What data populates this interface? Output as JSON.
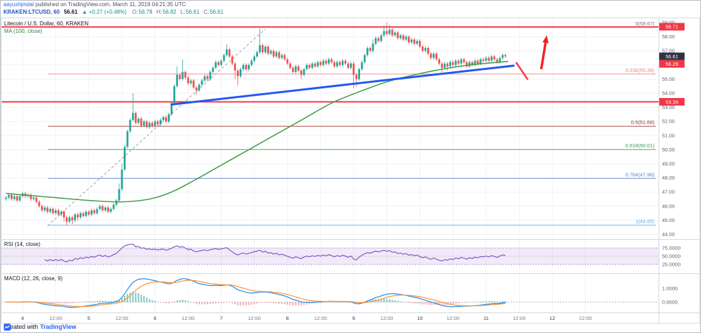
{
  "header": {
    "byline_user": "aayushjindal",
    "byline_rest": " published on TradingView.com, March 11, 2019 04:21:35 UTC",
    "symbol": "KRAKEN:LTCUSD, 60",
    "last_price": "56.61",
    "up_arrow": "▲",
    "change": "+0.27 (+0.48%)",
    "ohlc": [
      {
        "k": "O",
        "v": "56.78"
      },
      {
        "k": "H",
        "v": "56.82"
      },
      {
        "k": "L",
        "v": "56.61"
      },
      {
        "k": "C",
        "v": "56.61"
      }
    ]
  },
  "chart_labels": {
    "title": "Litecoin / U.S. Dollar, 60, KRAKEN",
    "ma": "MA (100, close)",
    "rsi": "RSI (14, close)",
    "macd": "MACD (12, 26, close, 9)"
  },
  "footer": {
    "created": "Created with",
    "brand": "TradingView"
  },
  "chart_data": {
    "type": "candlestick",
    "symbol": "KRAKEN:LTCUSD",
    "interval": "60",
    "title": "Litecoin / U.S. Dollar, 60, KRAKEN",
    "ylim": [
      44,
      59
    ],
    "price_ticks": [
      "59.00",
      "58.00",
      "57.00",
      "56.00",
      "55.00",
      "54.00",
      "53.00",
      "52.00",
      "51.00",
      "50.00",
      "49.00",
      "48.00",
      "47.00",
      "46.00",
      "45.00",
      "44.00"
    ],
    "time_ticks": [
      {
        "label": "4",
        "hour": 0
      },
      {
        "label": "12:00",
        "hour": 12
      },
      {
        "label": "5",
        "hour": 24
      },
      {
        "label": "12:00",
        "hour": 36
      },
      {
        "label": "6",
        "hour": 48
      },
      {
        "label": "12:00",
        "hour": 60
      },
      {
        "label": "7",
        "hour": 72
      },
      {
        "label": "12:00",
        "hour": 84
      },
      {
        "label": "8",
        "hour": 96
      },
      {
        "label": "12:00",
        "hour": 108
      },
      {
        "label": "9",
        "hour": 120
      },
      {
        "label": "12:00",
        "hour": 132
      },
      {
        "label": "10",
        "hour": 144
      },
      {
        "label": "12:00",
        "hour": 156
      },
      {
        "label": "11",
        "hour": 168
      },
      {
        "label": "12:00",
        "hour": 180
      },
      {
        "label": "12",
        "hour": 192
      },
      {
        "label": "12:00",
        "hour": 204
      }
    ],
    "candles": {
      "pre": 6,
      "seed_open": 46.5,
      "wick": 0.12,
      "up_color": "#26a69a",
      "down_color": "#ef5350",
      "closes": [
        46.6,
        46.8,
        46.5,
        46.7,
        46.4,
        46.7,
        46.9,
        46.7,
        46.8,
        46.5,
        46.6,
        46.3,
        46.0,
        45.7,
        45.9,
        45.6,
        45.8,
        45.5,
        45.7,
        45.4,
        45.6,
        45.2,
        44.9,
        45.2,
        45.0,
        45.4,
        45.2,
        45.5,
        45.3,
        45.6,
        45.4,
        45.7,
        45.5,
        45.8,
        46.0,
        45.7,
        45.9,
        45.6,
        45.8,
        46.1,
        46.4,
        47.2,
        48.6,
        50.2,
        51.3,
        52.1,
        52.6,
        51.9,
        52.2,
        51.7,
        52.0,
        51.6,
        51.9,
        51.7,
        52.0,
        51.8,
        52.1,
        52.3,
        52.0,
        52.5,
        53.3,
        54.5,
        55.3,
        55.0,
        55.5,
        55.1,
        54.7,
        54.9,
        54.4,
        54.2,
        54.6,
        54.9,
        55.2,
        55.0,
        55.5,
        55.8,
        56.2,
        56.0,
        56.3,
        56.7,
        57.1,
        56.6,
        56.1,
        55.6,
        55.2,
        55.7,
        56.0,
        55.7,
        56.0,
        56.3,
        56.6,
        56.9,
        57.4,
        56.9,
        57.3,
        56.8,
        57.0,
        56.6,
        56.9,
        56.5,
        56.7,
        56.4,
        56.1,
        55.8,
        55.5,
        55.9,
        55.6,
        55.3,
        55.7,
        56.0,
        55.8,
        56.1,
        55.9,
        56.2,
        56.0,
        56.3,
        56.1,
        56.4,
        56.2,
        55.9,
        56.2,
        56.0,
        56.3,
        56.1,
        55.8,
        56.1,
        55.3,
        55.0,
        55.7,
        56.2,
        56.7,
        57.2,
        57.0,
        57.5,
        57.9,
        57.7,
        58.1,
        58.4,
        58.2,
        58.5,
        58.1,
        58.3,
        57.9,
        58.1,
        57.8,
        58.0,
        57.6,
        57.8,
        57.5,
        57.7,
        57.3,
        57.0,
        57.2,
        56.8,
        56.5,
        56.8,
        56.4,
        56.1,
        55.8,
        56.1,
        55.9,
        56.2,
        56.0,
        56.3,
        56.1,
        56.4,
        56.2,
        55.9,
        56.2,
        56.0,
        56.3,
        56.1,
        56.4,
        56.3,
        56.5,
        56.3,
        56.6,
        56.4,
        56.2,
        56.5,
        56.7,
        56.61
      ],
      "high_overrides": {
        "41": 47.6,
        "42": 49.0,
        "46": 54.0,
        "62": 55.9,
        "64": 56.4,
        "80": 57.45,
        "92": 58.6,
        "133": 57.8,
        "137": 58.8,
        "138": 59.0,
        "139": 58.85
      },
      "low_overrides": {
        "21": 44.9,
        "22": 44.65,
        "23": 44.8,
        "24": 44.72,
        "26": 44.95,
        "69": 53.9,
        "83": 55.0,
        "84": 54.55,
        "107": 55.0,
        "126": 54.35,
        "127": 54.45,
        "158": 55.5,
        "160": 55.6
      }
    },
    "fib_levels": [
      {
        "label": "0(58.67)",
        "price": 58.67,
        "color": "#787b86"
      },
      {
        "label": "0.236(55.36)",
        "price": 55.36,
        "color": "#e8807d"
      },
      {
        "label": "0.5(51.66)",
        "price": 51.66,
        "color": "#9b2a2a"
      },
      {
        "label": "0.618(50.01)",
        "price": 50.01,
        "color": "#2f9e4f"
      },
      {
        "label": "0.764(47.96)",
        "price": 47.96,
        "color": "#5b7fd0"
      },
      {
        "label": "1(44.65)",
        "price": 44.65,
        "color": "#53b1e0"
      }
    ],
    "hlines": [
      {
        "price": 58.69,
        "color": "#f23645",
        "width": 2
      },
      {
        "price": 53.39,
        "color": "#f23645",
        "width": 2
      }
    ],
    "badges": [
      {
        "label": "58.71",
        "price": 58.71,
        "bg": "#f23645"
      },
      {
        "label": "56.61",
        "price": 56.61,
        "bg": "#2f3241"
      },
      {
        "label": "56.29",
        "price": 56.29,
        "bg": "#f23645"
      },
      {
        "label": "53.39",
        "price": 53.39,
        "bg": "#f23645"
      }
    ],
    "ma_line": {
      "color": "#43a047",
      "anchors": [
        [
          -6,
          46.9
        ],
        [
          0,
          46.8
        ],
        [
          12,
          46.6
        ],
        [
          24,
          46.4
        ],
        [
          36,
          46.3
        ],
        [
          46,
          46.5
        ],
        [
          54,
          47.0
        ],
        [
          62,
          47.8
        ],
        [
          72,
          48.9
        ],
        [
          82,
          50.0
        ],
        [
          92,
          51.1
        ],
        [
          102,
          52.2
        ],
        [
          112,
          53.3
        ],
        [
          122,
          54.1
        ],
        [
          132,
          54.8
        ],
        [
          142,
          55.3
        ],
        [
          152,
          55.7
        ],
        [
          162,
          56.0
        ],
        [
          170,
          56.15
        ],
        [
          176,
          56.25
        ]
      ]
    },
    "blue_trendline": {
      "from": [
        54,
        53.2
      ],
      "to": [
        178,
        55.95
      ],
      "color": "#2157f3",
      "width": 3
    },
    "dashed_guide": {
      "from": [
        9,
        44.6
      ],
      "to": [
        88,
        58.55
      ],
      "color": "#a0a3ab"
    },
    "red_slash": {
      "from": [
        179,
        56.15
      ],
      "to": [
        183,
        55.0
      ],
      "color": "#f23645"
    },
    "red_arrow": {
      "tail": [
        188,
        55.7
      ],
      "tip": [
        190,
        58.1
      ],
      "color": "#f02222"
    },
    "rsi": {
      "period": 14,
      "band": [
        25,
        75
      ],
      "color": "#7e57c2",
      "band_fill": "#b388d9",
      "ticks": [
        {
          "label": "75.0000",
          "value": 75
        },
        {
          "label": "50.0000",
          "value": 50
        },
        {
          "label": "25.0000",
          "value": 25
        }
      ]
    },
    "macd": {
      "fast": 12,
      "slow": 26,
      "signal": 9,
      "macd_color": "#1e88e5",
      "signal_color": "#ff9233",
      "hist_up": "#26a69a",
      "hist_down": "#f5767a",
      "ticks": [
        {
          "label": "1.0000",
          "value": 1
        },
        {
          "label": "0.0000",
          "value": 0
        }
      ]
    }
  }
}
